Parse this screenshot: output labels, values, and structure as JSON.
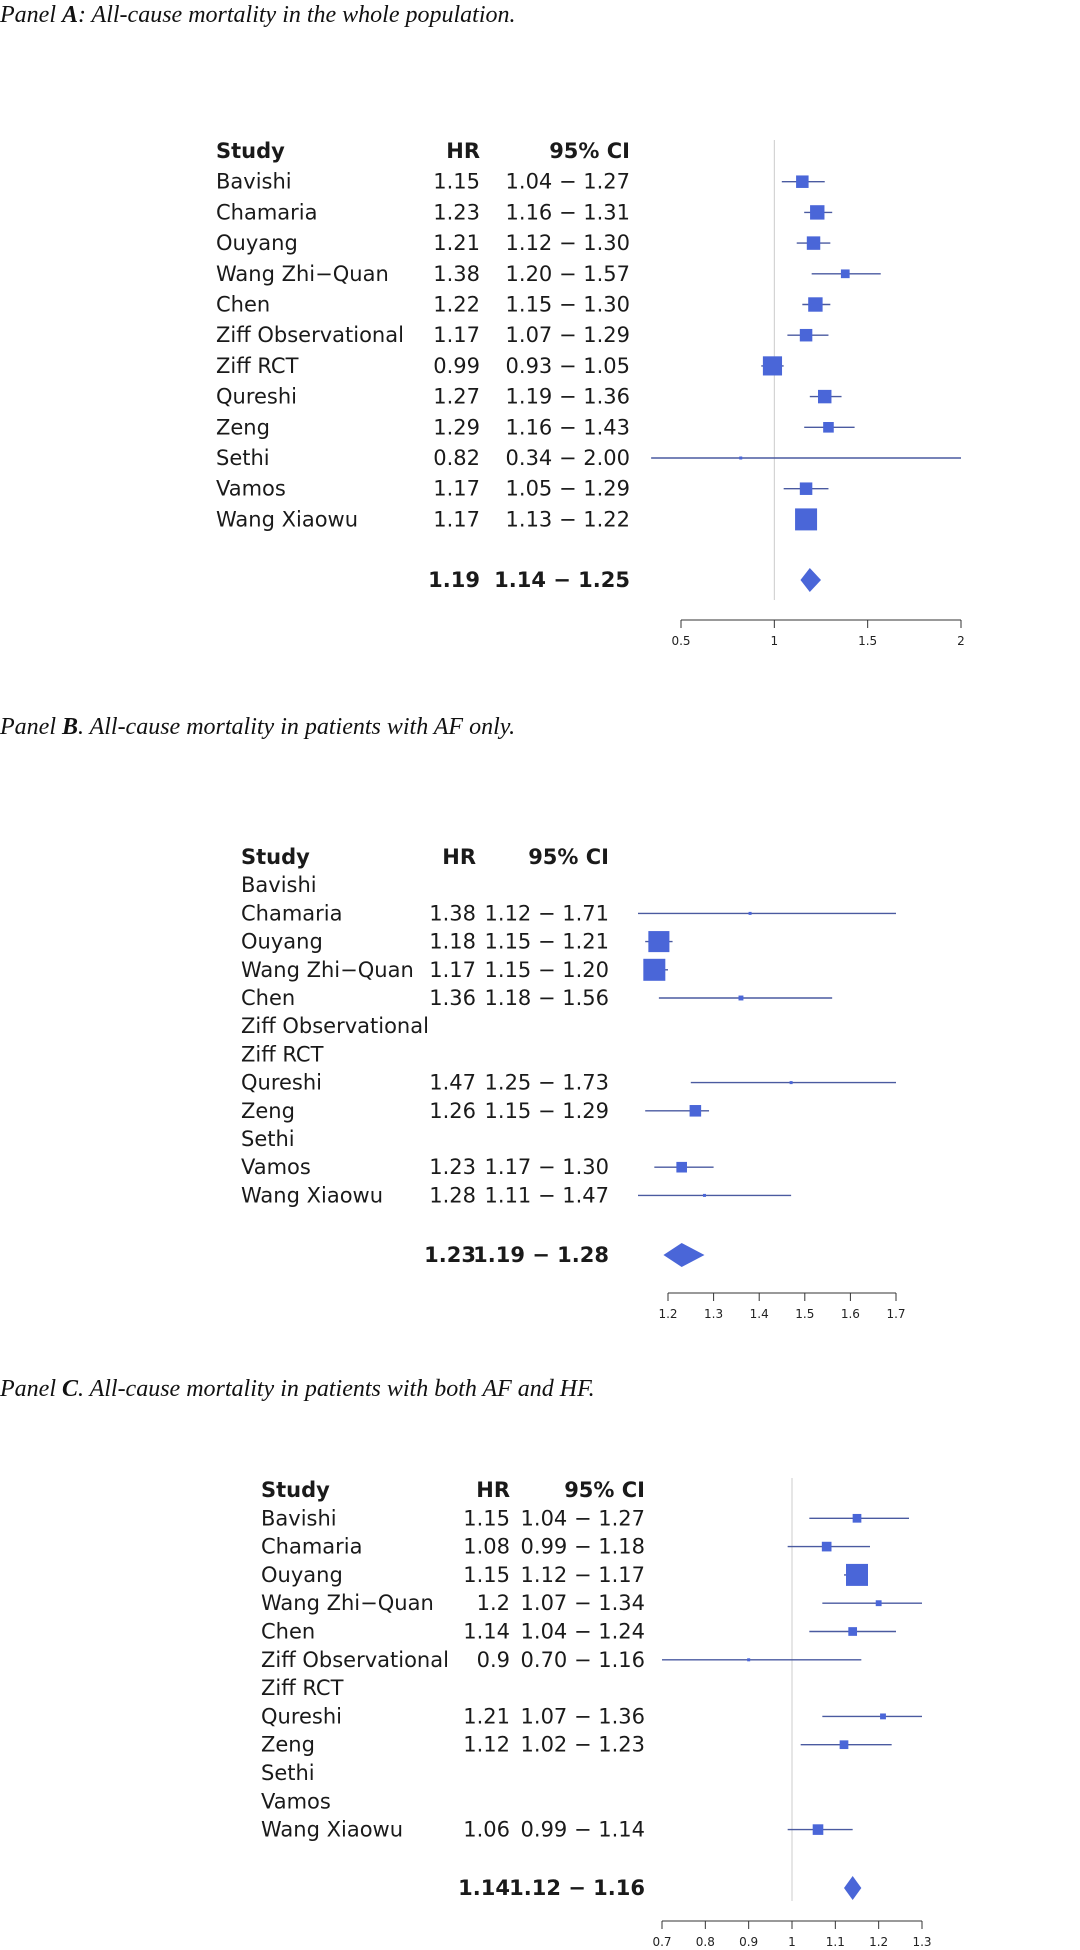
{
  "chart_data": [
    {
      "type": "forest",
      "panel_label": "A",
      "caption_prefix": "Panel ",
      "caption_suffix": ": All-cause mortality in the whole population.",
      "columns": {
        "study": "Study",
        "hr": "HR",
        "ci": "95% CI"
      },
      "rows": [
        {
          "study": "Bavishi",
          "hr": "1.15",
          "ci": "1.04 − 1.27",
          "est": 1.15,
          "lo": 1.04,
          "hi": 1.27,
          "weight": 0.5
        },
        {
          "study": "Chamaria",
          "hr": "1.23",
          "ci": "1.16 − 1.31",
          "est": 1.23,
          "lo": 1.16,
          "hi": 1.31,
          "weight": 0.6
        },
        {
          "study": "Ouyang",
          "hr": "1.21",
          "ci": "1.12 − 1.30",
          "est": 1.21,
          "lo": 1.12,
          "hi": 1.3,
          "weight": 0.55
        },
        {
          "study": "Wang Zhi−Quan",
          "hr": "1.38",
          "ci": "1.20 − 1.57",
          "est": 1.38,
          "lo": 1.2,
          "hi": 1.57,
          "weight": 0.3
        },
        {
          "study": "Chen",
          "hr": "1.22",
          "ci": "1.15 − 1.30",
          "est": 1.22,
          "lo": 1.15,
          "hi": 1.3,
          "weight": 0.6
        },
        {
          "study": "Ziff Observational",
          "hr": "1.17",
          "ci": "1.07 − 1.29",
          "est": 1.17,
          "lo": 1.07,
          "hi": 1.29,
          "weight": 0.5
        },
        {
          "study": "Ziff RCT",
          "hr": "0.99",
          "ci": "0.93 − 1.05",
          "est": 0.99,
          "lo": 0.93,
          "hi": 1.05,
          "weight": 0.85
        },
        {
          "study": "Qureshi",
          "hr": "1.27",
          "ci": "1.19 − 1.36",
          "est": 1.27,
          "lo": 1.19,
          "hi": 1.36,
          "weight": 0.55
        },
        {
          "study": "Zeng",
          "hr": "1.29",
          "ci": "1.16 − 1.43",
          "est": 1.29,
          "lo": 1.16,
          "hi": 1.43,
          "weight": 0.4
        },
        {
          "study": "Sethi",
          "hr": "0.82",
          "ci": "0.34 − 2.00",
          "est": 0.82,
          "lo": 0.34,
          "hi": 2.0,
          "weight": 0.0
        },
        {
          "study": "Vamos",
          "hr": "1.17",
          "ci": "1.05 − 1.29",
          "est": 1.17,
          "lo": 1.05,
          "hi": 1.29,
          "weight": 0.5
        },
        {
          "study": "Wang Xiaowu",
          "hr": "1.17",
          "ci": "1.13 − 1.22",
          "est": 1.17,
          "lo": 1.13,
          "hi": 1.22,
          "weight": 1.0
        }
      ],
      "pooled": {
        "hr": "1.19",
        "ci": "1.14 − 1.25",
        "est": 1.19,
        "lo": 1.14,
        "hi": 1.25
      },
      "xlim": [
        0.5,
        2
      ],
      "xticks": [
        "0.5",
        "1",
        "1.5",
        "2"
      ],
      "reference_line": 1,
      "grid": false
    },
    {
      "type": "forest",
      "panel_label": "B",
      "caption_prefix": "Panel ",
      "caption_suffix": ". All-cause mortality in patients with AF only.",
      "columns": {
        "study": "Study",
        "hr": "HR",
        "ci": "95% CI"
      },
      "rows": [
        {
          "study": "Bavishi",
          "hr": "",
          "ci": "",
          "est": null,
          "lo": null,
          "hi": null,
          "weight": 0
        },
        {
          "study": "Chamaria",
          "hr": "1.38",
          "ci": "1.12 − 1.71",
          "est": 1.38,
          "lo": 1.12,
          "hi": 1.71,
          "weight": 0.0
        },
        {
          "study": "Ouyang",
          "hr": "1.18",
          "ci": "1.15 − 1.21",
          "est": 1.18,
          "lo": 1.15,
          "hi": 1.21,
          "weight": 0.95
        },
        {
          "study": "Wang Zhi−Quan",
          "hr": "1.17",
          "ci": "1.15 − 1.20",
          "est": 1.17,
          "lo": 1.15,
          "hi": 1.2,
          "weight": 1.0
        },
        {
          "study": "Chen",
          "hr": "1.36",
          "ci": "1.18 − 1.56",
          "est": 1.36,
          "lo": 1.18,
          "hi": 1.56,
          "weight": 0.1
        },
        {
          "study": "Ziff Observational",
          "hr": "",
          "ci": "",
          "est": null,
          "lo": null,
          "hi": null,
          "weight": 0
        },
        {
          "study": "Ziff RCT",
          "hr": "",
          "ci": "",
          "est": null,
          "lo": null,
          "hi": null,
          "weight": 0
        },
        {
          "study": "Qureshi",
          "hr": "1.47",
          "ci": "1.25 − 1.73",
          "est": 1.47,
          "lo": 1.25,
          "hi": 1.73,
          "weight": 0.0
        },
        {
          "study": "Zeng",
          "hr": "1.26",
          "ci": "1.15 − 1.29",
          "est": 1.26,
          "lo": 1.15,
          "hi": 1.29,
          "weight": 0.45
        },
        {
          "study": "Sethi",
          "hr": "",
          "ci": "",
          "est": null,
          "lo": null,
          "hi": null,
          "weight": 0
        },
        {
          "study": "Vamos",
          "hr": "1.23",
          "ci": "1.17 − 1.30",
          "est": 1.23,
          "lo": 1.17,
          "hi": 1.3,
          "weight": 0.4
        },
        {
          "study": "Wang Xiaowu",
          "hr": "1.28",
          "ci": "1.11 − 1.47",
          "est": 1.28,
          "lo": 1.11,
          "hi": 1.47,
          "weight": 0.0
        }
      ],
      "pooled": {
        "hr": "1.23",
        "ci": "1.19 − 1.28",
        "est": 1.23,
        "lo": 1.19,
        "hi": 1.28
      },
      "xlim": [
        1.2,
        1.7
      ],
      "xticks": [
        "1.2",
        "1.3",
        "1.4",
        "1.5",
        "1.6",
        "1.7"
      ],
      "reference_line": null,
      "grid": false
    },
    {
      "type": "forest",
      "panel_label": "C",
      "caption_prefix": "Panel ",
      "caption_suffix": ". All-cause mortality in patients with both AF and HF.",
      "columns": {
        "study": "Study",
        "hr": "HR",
        "ci": "95% CI"
      },
      "rows": [
        {
          "study": "Bavishi",
          "hr": "1.15",
          "ci": "1.04 − 1.27",
          "est": 1.15,
          "lo": 1.04,
          "hi": 1.27,
          "weight": 0.3
        },
        {
          "study": "Chamaria",
          "hr": "1.08",
          "ci": "0.99 − 1.18",
          "est": 1.08,
          "lo": 0.99,
          "hi": 1.18,
          "weight": 0.35
        },
        {
          "study": "Ouyang",
          "hr": "1.15",
          "ci": "1.12 − 1.17",
          "est": 1.15,
          "lo": 1.12,
          "hi": 1.17,
          "weight": 1.0
        },
        {
          "study": "Wang Zhi−Quan",
          "hr": "1.2",
          "ci": "1.07 − 1.34",
          "est": 1.2,
          "lo": 1.07,
          "hi": 1.34,
          "weight": 0.15
        },
        {
          "study": "Chen",
          "hr": "1.14",
          "ci": "1.04 − 1.24",
          "est": 1.14,
          "lo": 1.04,
          "hi": 1.24,
          "weight": 0.3
        },
        {
          "study": "Ziff Observational",
          "hr": "0.9",
          "ci": "0.70 − 1.16",
          "est": 0.9,
          "lo": 0.7,
          "hi": 1.16,
          "weight": 0.0
        },
        {
          "study": "Ziff RCT",
          "hr": "",
          "ci": "",
          "est": null,
          "lo": null,
          "hi": null,
          "weight": 0
        },
        {
          "study": "Qureshi",
          "hr": "1.21",
          "ci": "1.07 − 1.36",
          "est": 1.21,
          "lo": 1.07,
          "hi": 1.36,
          "weight": 0.15
        },
        {
          "study": "Zeng",
          "hr": "1.12",
          "ci": "1.02 − 1.23",
          "est": 1.12,
          "lo": 1.02,
          "hi": 1.23,
          "weight": 0.3
        },
        {
          "study": "Sethi",
          "hr": "",
          "ci": "",
          "est": null,
          "lo": null,
          "hi": null,
          "weight": 0
        },
        {
          "study": "Vamos",
          "hr": "",
          "ci": "",
          "est": null,
          "lo": null,
          "hi": null,
          "weight": 0
        },
        {
          "study": "Wang Xiaowu",
          "hr": "1.06",
          "ci": "0.99 − 1.14",
          "est": 1.06,
          "lo": 0.99,
          "hi": 1.14,
          "weight": 0.4
        }
      ],
      "pooled": {
        "hr": "1.14",
        "ci": "1.12 − 1.16",
        "est": 1.14,
        "lo": 1.12,
        "hi": 1.16
      },
      "xlim": [
        0.7,
        1.3
      ],
      "xticks": [
        "0.7",
        "0.8",
        "0.9",
        "1",
        "1.1",
        "1.2",
        "1.3"
      ],
      "reference_line": 1,
      "grid": false
    }
  ],
  "colors": {
    "marker": "#4a66d8",
    "line": "#4a5aa0",
    "reference": "#cccccc",
    "axis": "#333333"
  }
}
